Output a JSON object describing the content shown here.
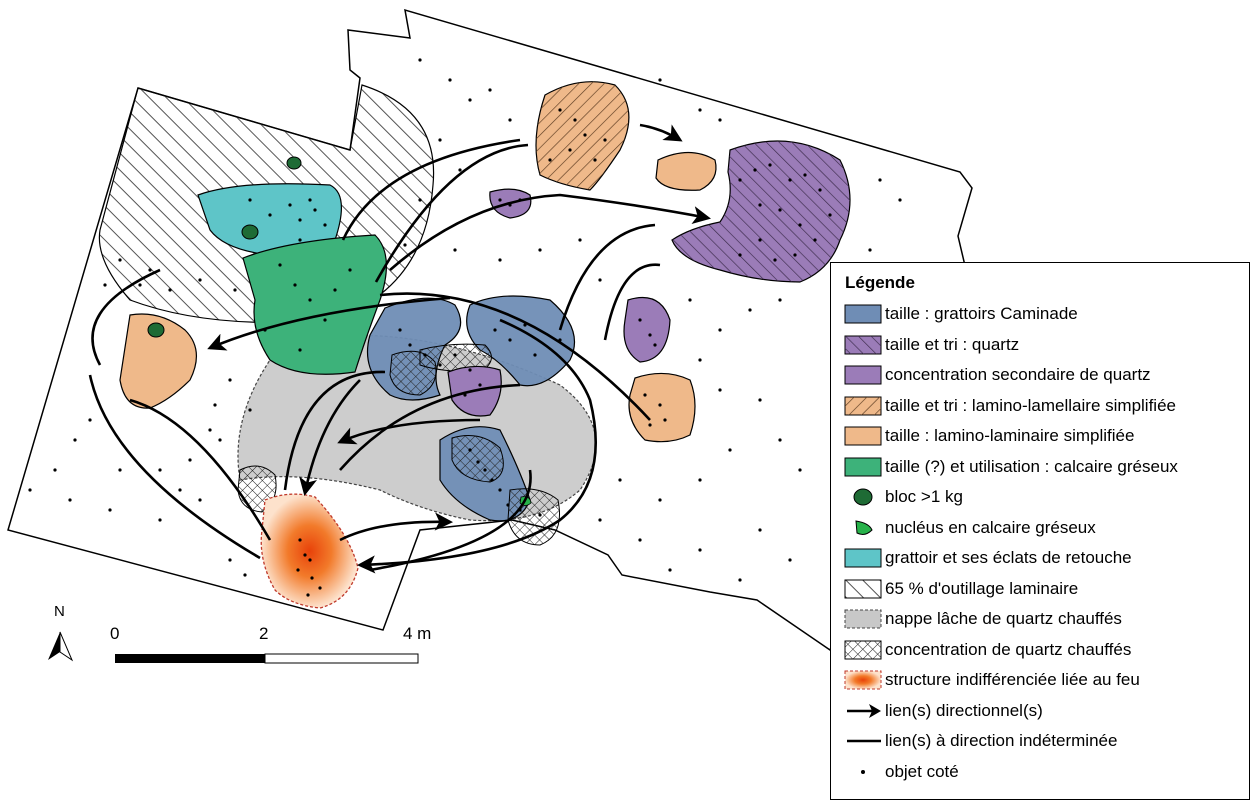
{
  "legend": {
    "title": "Légende",
    "items": [
      {
        "id": "taille-grattoirs",
        "label": "taille : grattoirs Caminade"
      },
      {
        "id": "taille-tri-quartz",
        "label": "taille et tri : quartz"
      },
      {
        "id": "concentration-quartz",
        "label": "concentration secondaire de quartz"
      },
      {
        "id": "taille-tri-lamino",
        "label": "taille et tri : lamino-lamellaire simplifiée"
      },
      {
        "id": "taille-lamino",
        "label": "taille : lamino-laminaire simplifiée"
      },
      {
        "id": "calcaire-greseux",
        "label": "taille (?) et utilisation : calcaire gréseux"
      },
      {
        "id": "bloc",
        "label": "bloc >1 kg"
      },
      {
        "id": "nucleus",
        "label": "nucléus en calcaire gréseux"
      },
      {
        "id": "grattoir-eclats",
        "label": "grattoir et ses éclats de retouche"
      },
      {
        "id": "outillage",
        "label": "65 % d'outillage laminaire"
      },
      {
        "id": "nappe",
        "label": "nappe lâche de quartz chauffés"
      },
      {
        "id": "concentration-chauffes",
        "label": "concentration de quartz chauffés"
      },
      {
        "id": "structure-feu",
        "label": "structure indifférenciée liée au feu"
      },
      {
        "id": "lien-directionnel",
        "label": "lien(s) directionnel(s)"
      },
      {
        "id": "lien-indetermine",
        "label": "lien(s) à direction indéterminée"
      },
      {
        "id": "objet-cote",
        "label": "objet coté"
      }
    ]
  },
  "scale": {
    "labels": [
      "0",
      "2",
      "4 m"
    ]
  },
  "north": {
    "label": "N"
  },
  "colors": {
    "grattoirs": "#6f8db5",
    "quartz": "#9b7cb8",
    "lamino": "#efb98a",
    "calcaire": "#3db27a",
    "bloc": "#1e6b35",
    "nucleus": "#27b24a",
    "grattoir_eclats": "#5ec5c8",
    "nappe": "#c8c8c8",
    "feu": "#f27a2a"
  }
}
